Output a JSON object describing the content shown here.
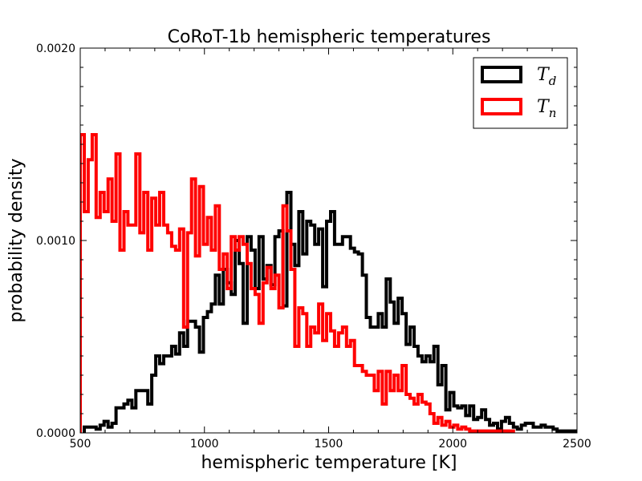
{
  "chart_data": {
    "type": "histogram-step",
    "title": "CoRoT-1b hemispheric temperatures",
    "xlabel": "hemispheric temperature [K]",
    "ylabel": "probability density",
    "xlim": [
      500,
      2500
    ],
    "ylim": [
      0,
      0.002
    ],
    "x_ticks": [
      "500",
      "1000",
      "1500",
      "2000",
      "2500"
    ],
    "x_tick_values": [
      500,
      1000,
      1500,
      2000,
      2500
    ],
    "y_ticks": [
      "0.0000",
      "0.0010",
      "0.0020"
    ],
    "y_tick_values": [
      0,
      0.001,
      0.002
    ],
    "grid": false,
    "legend_position": "top-right",
    "bin_width": 16,
    "series": [
      {
        "name": "T",
        "subscript": "d",
        "color": "#000000",
        "bin_start": 516,
        "values": [
          3e-05,
          3e-05,
          3e-05,
          2e-05,
          4e-05,
          6e-05,
          3e-05,
          5e-05,
          0.00013,
          0.00013,
          0.00015,
          0.00017,
          0.00013,
          0.00022,
          0.00022,
          0.00022,
          0.00015,
          0.0003,
          0.0004,
          0.00036,
          0.0004,
          0.0004,
          0.00045,
          0.00041,
          0.00052,
          0.00045,
          0.00058,
          0.00058,
          0.00055,
          0.00042,
          0.0006,
          0.00063,
          0.00067,
          0.00082,
          0.00067,
          0.00085,
          0.00078,
          0.00072,
          0.001,
          0.00088,
          0.00057,
          0.00102,
          0.00095,
          0.00075,
          0.00102,
          0.0008,
          0.00087,
          0.00077,
          0.00102,
          0.00105,
          0.00066,
          0.00125,
          0.00098,
          0.00087,
          0.00115,
          0.00093,
          0.0011,
          0.00108,
          0.00098,
          0.00106,
          0.00076,
          0.0011,
          0.00115,
          0.00098,
          0.00098,
          0.00102,
          0.00102,
          0.00096,
          0.00094,
          0.00093,
          0.00082,
          0.0006,
          0.00055,
          0.00055,
          0.00062,
          0.00055,
          0.0008,
          0.00068,
          0.00057,
          0.0007,
          0.00062,
          0.00046,
          0.00055,
          0.00045,
          0.0004,
          0.00037,
          0.0004,
          0.00037,
          0.00045,
          0.00025,
          0.00035,
          0.00012,
          0.00021,
          0.00014,
          0.00013,
          0.00014,
          9e-05,
          0.00014,
          7e-05,
          8e-05,
          0.00012,
          7e-05,
          4e-05,
          5e-05,
          2e-05,
          6e-05,
          8e-05,
          5e-05,
          3e-05,
          2e-05,
          4e-05,
          5e-05,
          5e-05,
          3e-05,
          3e-05,
          4e-05,
          3e-05,
          3e-05,
          2e-05,
          1e-05,
          1e-05,
          1e-05,
          1e-05,
          1e-05,
          1e-05,
          1e-05,
          1e-05,
          1e-05,
          1e-05,
          1e-05,
          1e-05,
          1e-05,
          1e-05,
          1e-05,
          1e-05,
          1e-05,
          1e-05,
          1e-05,
          1e-05,
          1e-05,
          1e-05,
          1e-05,
          1e-05,
          1e-05,
          1e-05,
          1e-05,
          1e-05,
          1e-05,
          1e-05,
          1e-05,
          1e-05,
          1e-05,
          1e-05,
          1e-05,
          1e-05,
          1e-05,
          1e-05,
          1e-05,
          1e-05,
          1e-05,
          1e-05,
          1e-05,
          1e-05,
          1e-05,
          1e-05,
          1e-05,
          1e-05,
          1e-05,
          1e-05,
          1e-05,
          1e-05,
          1e-05,
          1e-05,
          1e-05,
          1e-05,
          1e-05,
          1e-05,
          1e-05,
          1e-05,
          1e-05,
          1e-05,
          1e-05,
          1e-05,
          1e-05,
          1e-05,
          1e-05,
          1e-05,
          1e-05,
          1e-05,
          1e-05,
          1e-05,
          1e-05,
          1e-05,
          1e-05,
          1e-05,
          1e-05,
          1e-05,
          1e-05,
          1e-05,
          1e-05,
          1e-05,
          1e-05,
          1e-05,
          1e-05,
          1e-05,
          1e-05,
          1e-05,
          1e-05
        ]
      },
      {
        "name": "T",
        "subscript": "n",
        "color": "#ff0000",
        "bin_start": 500,
        "values": [
          0.00155,
          0.00115,
          0.00142,
          0.00155,
          0.00112,
          0.00125,
          0.00115,
          0.00132,
          0.0011,
          0.00145,
          0.00095,
          0.00115,
          0.00108,
          0.00108,
          0.00145,
          0.00104,
          0.00125,
          0.00095,
          0.00122,
          0.00108,
          0.00125,
          0.00108,
          0.00104,
          0.00097,
          0.00095,
          0.00106,
          0.00055,
          0.00104,
          0.00132,
          0.00092,
          0.00128,
          0.00098,
          0.00112,
          0.00095,
          0.00118,
          0.00085,
          0.00093,
          0.00075,
          0.00102,
          0.00095,
          0.00102,
          0.00098,
          0.00088,
          0.00075,
          0.00072,
          0.00057,
          0.00078,
          0.00086,
          0.00075,
          0.00082,
          0.00065,
          0.00118,
          0.00105,
          0.00085,
          0.00045,
          0.00065,
          0.00062,
          0.00045,
          0.00055,
          0.00052,
          0.00067,
          0.00048,
          0.00062,
          0.00053,
          0.00045,
          0.00052,
          0.00055,
          0.00045,
          0.00048,
          0.00035,
          0.00035,
          0.00032,
          0.0003,
          0.0003,
          0.00022,
          0.00032,
          0.00015,
          0.00032,
          0.00022,
          0.0003,
          0.00022,
          0.00035,
          0.0002,
          0.00018,
          0.00015,
          0.0002,
          0.00016,
          0.00015,
          0.0001,
          5e-05,
          8e-05,
          4e-05,
          6e-05,
          3e-05,
          4e-05,
          2e-05,
          3e-05,
          2e-05,
          1e-05,
          1e-05,
          1e-05,
          1e-05,
          1e-05,
          1e-05,
          1e-05,
          1e-05,
          1e-05,
          1e-05,
          1e-05
        ]
      }
    ]
  }
}
